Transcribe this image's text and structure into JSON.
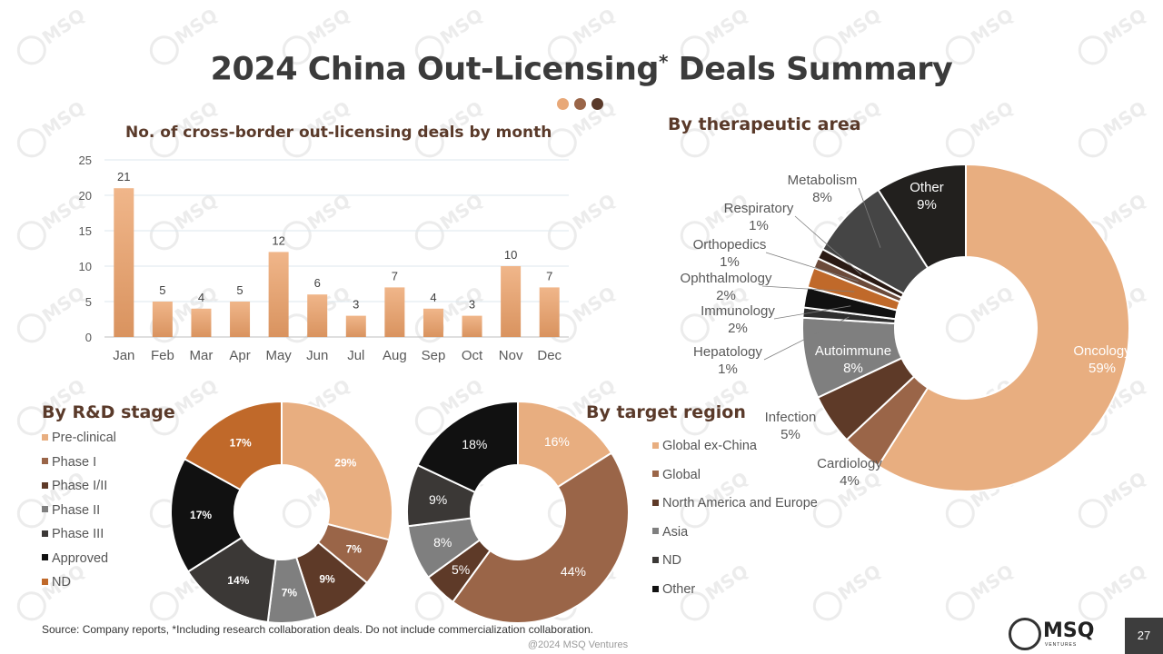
{
  "slide": {
    "title": "2024 China Out-Licensing",
    "title_mark": "*",
    "title_tail": " Deals Summary",
    "dot_colors": [
      "#e8a878",
      "#9a6548",
      "#5a3a2a"
    ],
    "source": "Source: Company reports, *Including research collaboration deals. Do not include commercialization collaboration.",
    "copyright": "@2024 MSQ Ventures",
    "page_number": "27",
    "watermark_text": "MSQ",
    "logo": {
      "text": "MSQ",
      "subtext": "VENTURES"
    }
  },
  "chart_data": [
    {
      "id": "monthly",
      "type": "bar",
      "title": "No. of cross-border out-licensing deals by month",
      "categories": [
        "Jan",
        "Feb",
        "Mar",
        "Apr",
        "May",
        "Jun",
        "Jul",
        "Aug",
        "Sep",
        "Oct",
        "Nov",
        "Dec"
      ],
      "values": [
        21,
        5,
        4,
        5,
        12,
        6,
        3,
        7,
        4,
        3,
        10,
        7
      ],
      "ylim": [
        0,
        25
      ],
      "yticks": [
        0,
        5,
        10,
        15,
        20,
        25
      ],
      "grid": true,
      "color_top": "#f0b68a",
      "color_bottom": "#d9935f"
    },
    {
      "id": "therapeutic",
      "type": "pie",
      "title": "By therapeutic area",
      "slices": [
        {
          "label": "Oncology",
          "value": 59,
          "pct": "59%",
          "color": "#e8ae80",
          "text_color": "#ffffff"
        },
        {
          "label": "Cardiology",
          "value": 4,
          "pct": "4%",
          "color": "#9a6548",
          "text_color": "#555555"
        },
        {
          "label": "Infection",
          "value": 5,
          "pct": "5%",
          "color": "#5e3a28",
          "text_color": "#555555"
        },
        {
          "label": "Autoimmune",
          "value": 8,
          "pct": "8%",
          "color": "#7f7f7f",
          "text_color": "#ffffff"
        },
        {
          "label": "Hepatology",
          "value": 1,
          "pct": "1%",
          "color": "#2e2e2e",
          "text_color": "#555555"
        },
        {
          "label": "Immunology",
          "value": 2,
          "pct": "2%",
          "color": "#111111",
          "text_color": "#555555"
        },
        {
          "label": "Ophthalmology",
          "value": 2,
          "pct": "2%",
          "color": "#c0692a",
          "text_color": "#555555"
        },
        {
          "label": "Orthopedics",
          "value": 1,
          "pct": "1%",
          "color": "#6b4a3a",
          "text_color": "#555555"
        },
        {
          "label": "Respiratory",
          "value": 1,
          "pct": "1%",
          "color": "#2a1a14",
          "text_color": "#555555"
        },
        {
          "label": "Metabolism",
          "value": 8,
          "pct": "8%",
          "color": "#454545",
          "text_color": "#555555"
        },
        {
          "label": "Other",
          "value": 9,
          "pct": "9%",
          "color": "#22201e",
          "text_color": "#ffffff"
        }
      ]
    },
    {
      "id": "rd_stage",
      "type": "pie",
      "title": "By R&D stage",
      "legend": "left",
      "slices": [
        {
          "label": "Pre-clinical",
          "value": 29,
          "pct": "29%",
          "color": "#e8ae80"
        },
        {
          "label": "Phase I",
          "value": 7,
          "pct": "7%",
          "color": "#9a6548"
        },
        {
          "label": "Phase I/II",
          "value": 9,
          "pct": "9%",
          "color": "#5e3a28"
        },
        {
          "label": "Phase II",
          "value": 7,
          "pct": "7%",
          "color": "#7f7f7f"
        },
        {
          "label": "Phase III",
          "value": 14,
          "pct": "14%",
          "color": "#3b3836"
        },
        {
          "label": "Approved",
          "value": 17,
          "pct": "17%",
          "color": "#111111"
        },
        {
          "label": "ND",
          "value": 17,
          "pct": "17%",
          "color": "#c0692a"
        }
      ]
    },
    {
      "id": "region",
      "type": "pie",
      "title": "By target region",
      "legend": "right",
      "slices": [
        {
          "label": "Global ex-China",
          "value": 16,
          "pct": "16%",
          "color": "#e8ae80"
        },
        {
          "label": "Global",
          "value": 44,
          "pct": "44%",
          "color": "#9a6548"
        },
        {
          "label": "North America and Europe",
          "value": 5,
          "pct": "5%",
          "color": "#5e3a28"
        },
        {
          "label": "Asia",
          "value": 8,
          "pct": "8%",
          "color": "#7f7f7f"
        },
        {
          "label": "ND",
          "value": 9,
          "pct": "9%",
          "color": "#3b3836"
        },
        {
          "label": "Other",
          "value": 18,
          "pct": "18%",
          "color": "#111111"
        }
      ]
    }
  ]
}
